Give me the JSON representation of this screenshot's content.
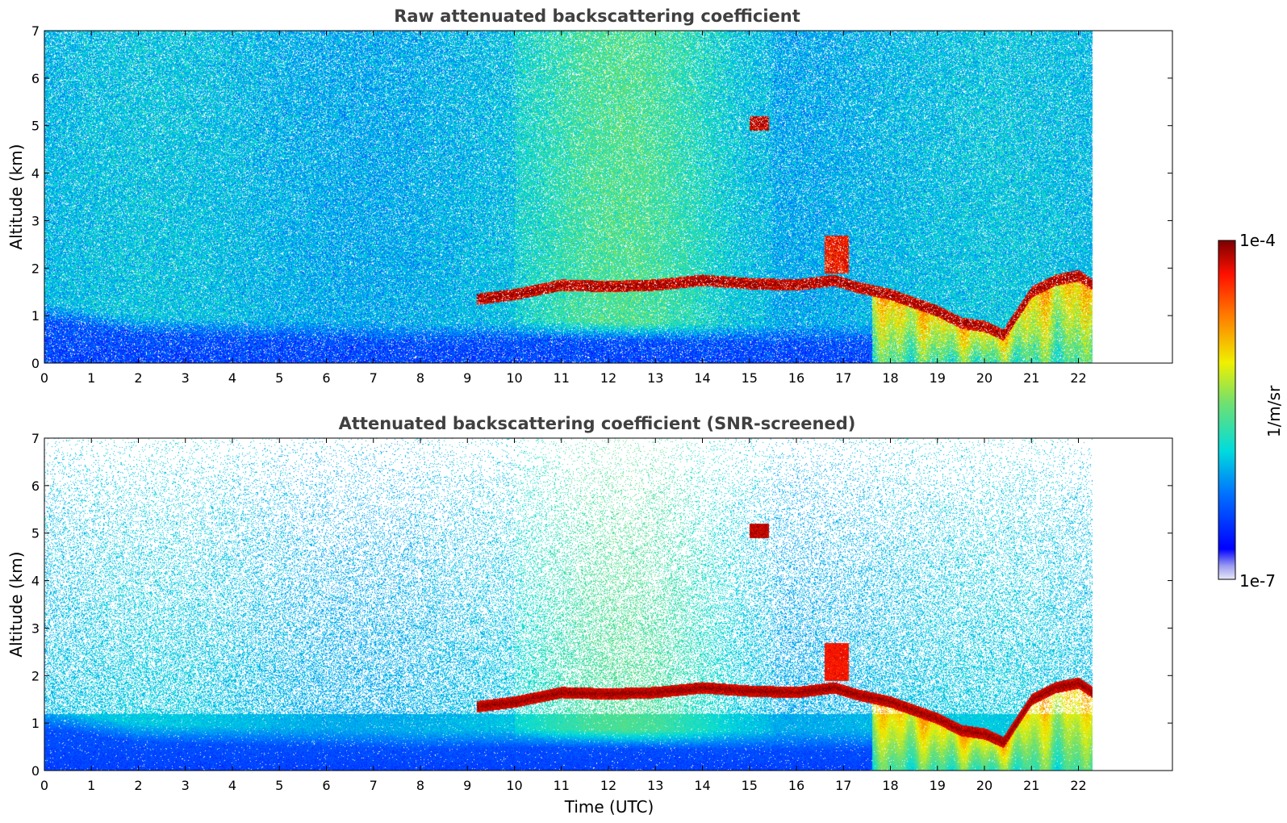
{
  "chart_data": [
    {
      "type": "heatmap",
      "title": "Raw attenuated backscattering coefficient",
      "xlabel": "",
      "ylabel": "Altitude (km)",
      "xlim": [
        0,
        24
      ],
      "ylim": [
        0,
        7
      ],
      "x_ticks": [
        0,
        1,
        2,
        3,
        4,
        5,
        6,
        7,
        8,
        9,
        10,
        11,
        12,
        13,
        14,
        15,
        16,
        17,
        18,
        19,
        20,
        21,
        22
      ],
      "y_ticks": [
        0,
        1,
        2,
        3,
        4,
        5,
        6,
        7
      ],
      "data_end_time": 22.3,
      "screened": false
    },
    {
      "type": "heatmap",
      "title": "Attenuated backscattering coefficient (SNR-screened)",
      "xlabel": "Time (UTC)",
      "ylabel": "Altitude (km)",
      "xlim": [
        0,
        24
      ],
      "ylim": [
        0,
        7
      ],
      "x_ticks": [
        0,
        1,
        2,
        3,
        4,
        5,
        6,
        7,
        8,
        9,
        10,
        11,
        12,
        13,
        14,
        15,
        16,
        17,
        18,
        19,
        20,
        21,
        22
      ],
      "y_ticks": [
        0,
        1,
        2,
        3,
        4,
        5,
        6,
        7
      ],
      "data_end_time": 22.3,
      "screened": true
    }
  ],
  "colorbar": {
    "min_label": "1e-7",
    "max_label": "1e-4",
    "units": "1/m/sr",
    "scale": "log",
    "colormap": "jet"
  },
  "layer": {
    "cloud_base_km": [
      [
        9.2,
        1.35
      ],
      [
        10.0,
        1.45
      ],
      [
        10.5,
        1.55
      ],
      [
        11.0,
        1.65
      ],
      [
        12.0,
        1.62
      ],
      [
        13.0,
        1.65
      ],
      [
        14.0,
        1.75
      ],
      [
        15.0,
        1.68
      ],
      [
        16.0,
        1.65
      ],
      [
        16.8,
        1.75
      ],
      [
        17.3,
        1.6
      ],
      [
        18.0,
        1.45
      ],
      [
        19.0,
        1.1
      ],
      [
        19.5,
        0.85
      ],
      [
        20.0,
        0.78
      ],
      [
        20.4,
        0.6
      ],
      [
        21.0,
        1.5
      ],
      [
        21.5,
        1.75
      ],
      [
        22.0,
        1.85
      ],
      [
        22.3,
        1.65
      ]
    ],
    "boundary_layer_top_km": [
      [
        0,
        0.9
      ],
      [
        2,
        0.6
      ],
      [
        4,
        0.55
      ],
      [
        8,
        0.45
      ],
      [
        10,
        0.5
      ],
      [
        14,
        0.45
      ],
      [
        17,
        0.45
      ],
      [
        17.8,
        0.45
      ]
    ]
  }
}
